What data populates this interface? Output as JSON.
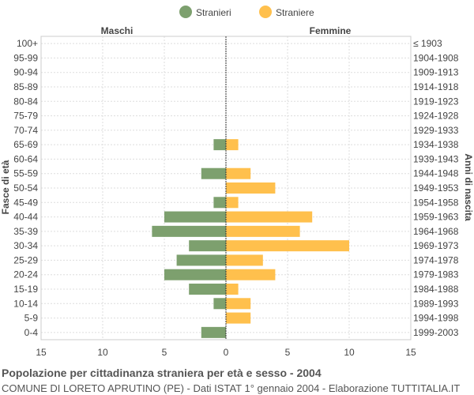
{
  "chart_data": {
    "type": "bar",
    "orientation": "horizontal",
    "title": "Popolazione per cittadinanza straniera per età e sesso - 2004",
    "subtitle": "COMUNE DI LORETO APRUTINO (PE) - Dati ISTAT 1° gennaio 2004 - Elaborazione TUTTITALIA.IT",
    "ylabel_left": "Fasce di età",
    "ylabel_right": "Anni di nascita",
    "left_header": "Maschi",
    "right_header": "Femmine",
    "legend_position": "top-center",
    "grid": true,
    "xlim": [
      -15,
      15
    ],
    "x_ticks": [
      -15,
      -10,
      -5,
      0,
      5,
      10,
      15
    ],
    "x_tick_labels": [
      "15",
      "10",
      "5",
      "0",
      "5",
      "10",
      "15"
    ],
    "categories": [
      "100+",
      "95-99",
      "90-94",
      "85-89",
      "80-84",
      "75-79",
      "70-74",
      "65-69",
      "60-64",
      "55-59",
      "50-54",
      "45-49",
      "40-44",
      "35-39",
      "30-34",
      "25-29",
      "20-24",
      "15-19",
      "10-14",
      "5-9",
      "0-4"
    ],
    "birth_years": [
      "≤ 1903",
      "1904-1908",
      "1909-1913",
      "1914-1918",
      "1919-1923",
      "1924-1928",
      "1929-1933",
      "1934-1938",
      "1939-1943",
      "1944-1948",
      "1949-1953",
      "1954-1958",
      "1959-1963",
      "1964-1968",
      "1969-1973",
      "1974-1978",
      "1979-1983",
      "1984-1988",
      "1989-1993",
      "1994-1998",
      "1999-2003"
    ],
    "series": [
      {
        "name": "Stranieri",
        "color": "#7da06e",
        "values": [
          0,
          0,
          0,
          0,
          0,
          0,
          0,
          1,
          0,
          2,
          0,
          1,
          5,
          6,
          3,
          4,
          5,
          3,
          1,
          0,
          2
        ]
      },
      {
        "name": "Straniere",
        "color": "#ffc04d",
        "values": [
          0,
          0,
          0,
          0,
          0,
          0,
          0,
          1,
          0,
          2,
          4,
          1,
          7,
          6,
          10,
          3,
          4,
          1,
          2,
          2,
          0
        ]
      }
    ]
  }
}
